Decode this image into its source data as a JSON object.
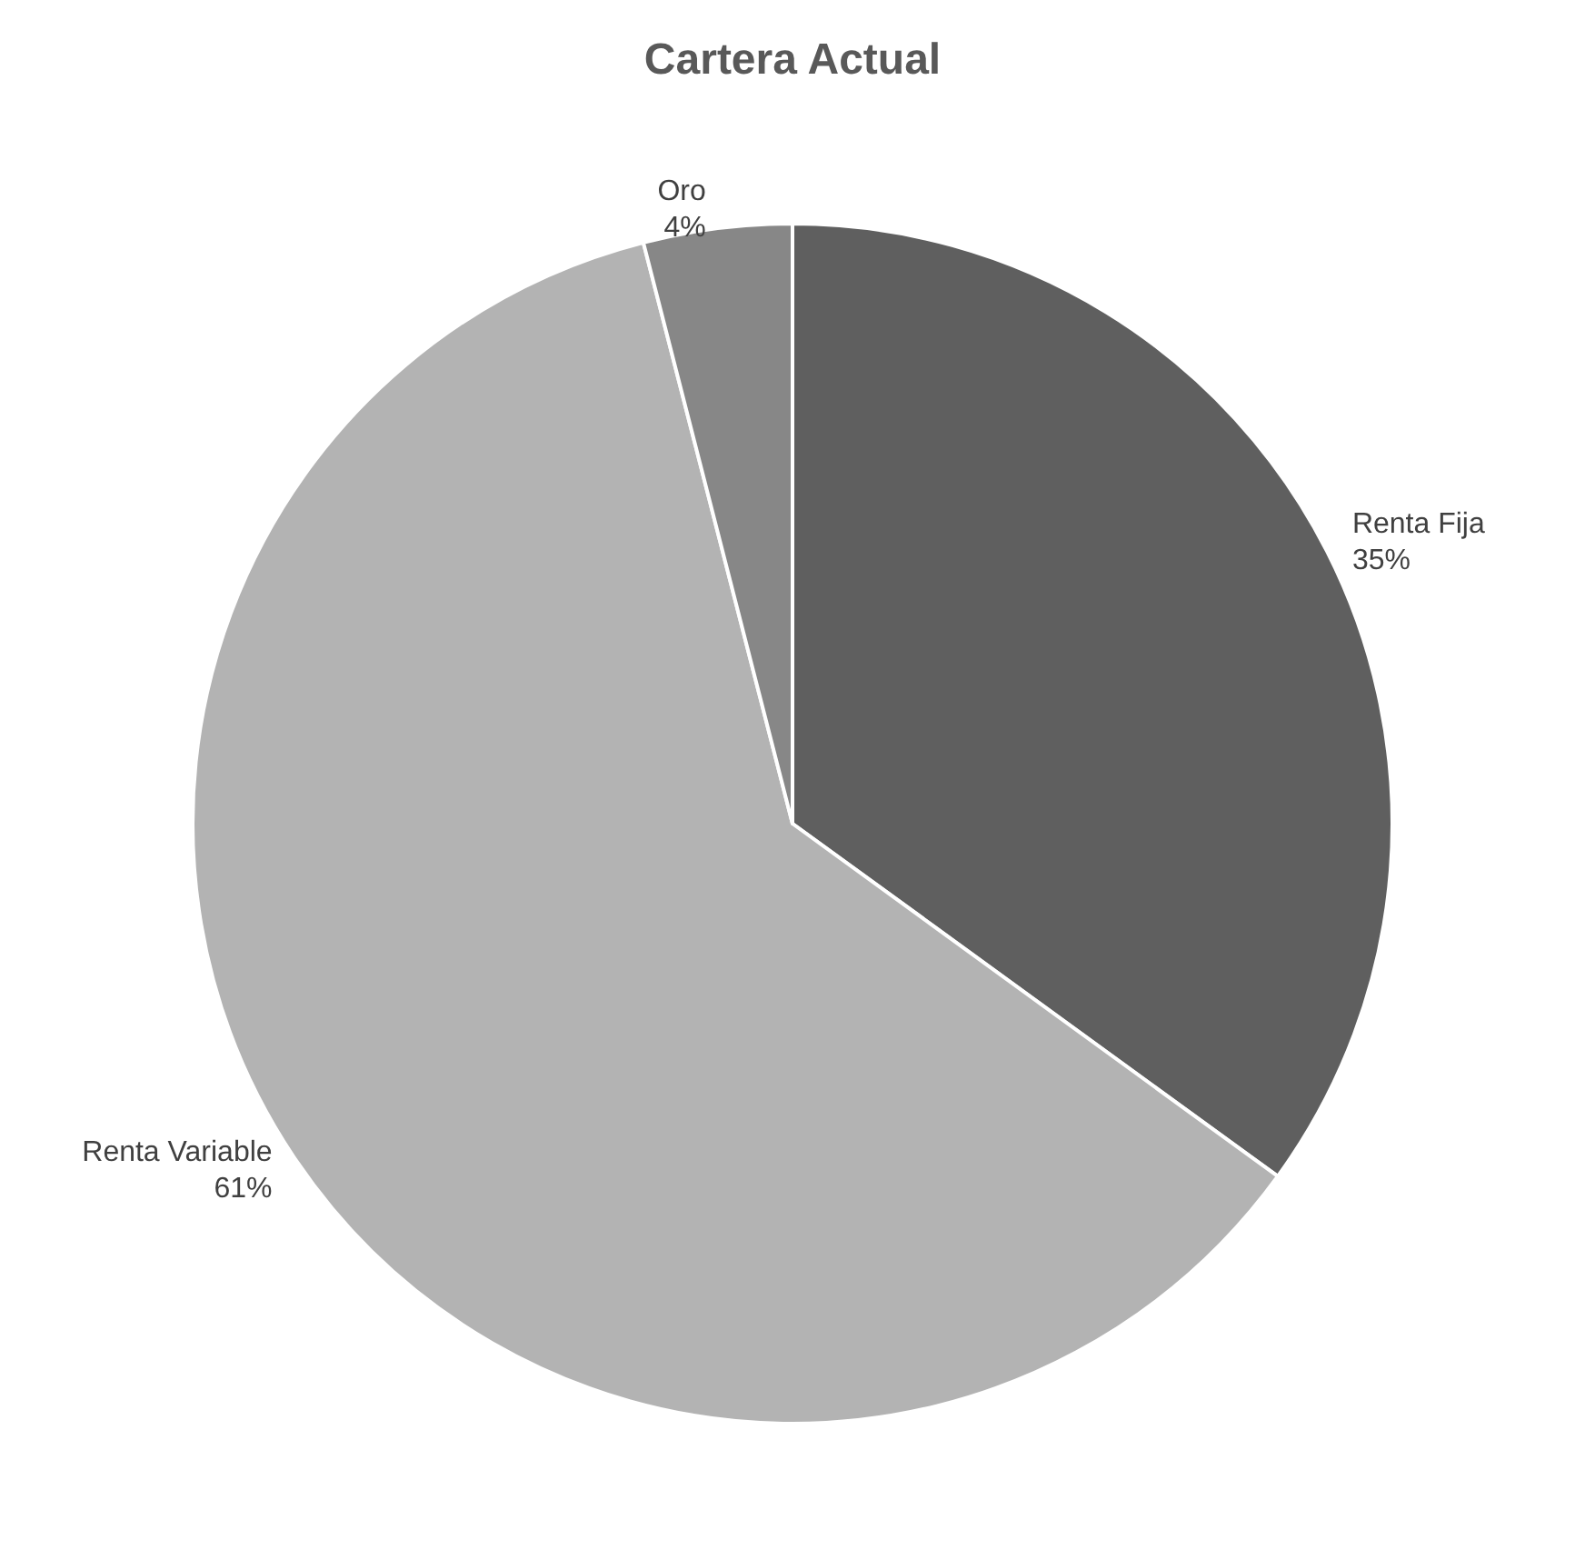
{
  "chart_data": {
    "type": "pie",
    "title": "Cartera Actual",
    "categories": [
      "Renta Fija",
      "Renta Variable",
      "Oro"
    ],
    "values": [
      35,
      61,
      4
    ],
    "value_labels": [
      "35%",
      "61%",
      "4%"
    ],
    "colors": [
      "#5f5f5f",
      "#b3b3b3",
      "#878787"
    ],
    "legend": false
  }
}
